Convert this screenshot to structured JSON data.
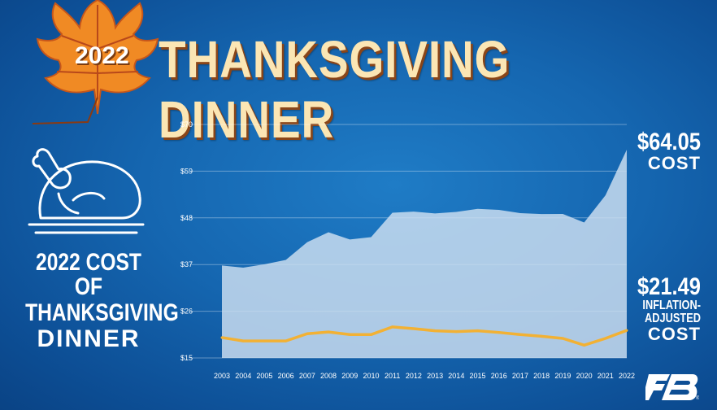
{
  "header": {
    "year": "2022",
    "title": "THANKSGIVING DINNER"
  },
  "left_label": {
    "line1": "2022 COST OF",
    "line2": "THANKSGIVING",
    "line3": "DINNER"
  },
  "callouts": {
    "cost_value": "$64.05",
    "cost_label": "COST",
    "adjusted_value": "$21.49",
    "adjusted_label_1": "INFLATION-",
    "adjusted_label_2": "ADJUSTED",
    "adjusted_label_3": "COST"
  },
  "colors": {
    "cost_fill": "#cfe1f2",
    "adjusted_line": "#f2b134",
    "background": "#1566b0"
  },
  "icons": [
    "maple-leaf-icon",
    "turkey-icon",
    "farm-bureau-logo-icon"
  ],
  "chart_data": {
    "type": "area",
    "title": "",
    "xlabel": "",
    "ylabel": "",
    "x": [
      "2003",
      "2004",
      "2005",
      "2006",
      "2007",
      "2008",
      "2009",
      "2010",
      "2011",
      "2012",
      "2013",
      "2014",
      "2015",
      "2016",
      "2017",
      "2018",
      "2019",
      "2020",
      "2021",
      "2022"
    ],
    "ylim": [
      15,
      70
    ],
    "y_ticks": [
      "$15",
      "$26",
      "$37",
      "$48",
      "$59",
      "$70"
    ],
    "y_tick_values": [
      15,
      26,
      37,
      48,
      59,
      70
    ],
    "grid": true,
    "series": [
      {
        "name": "COST",
        "type": "area",
        "values": [
          36.78,
          36.28,
          37.06,
          38.1,
          42.26,
          44.61,
          42.91,
          43.47,
          49.2,
          49.48,
          49.04,
          49.41,
          50.11,
          49.87,
          49.12,
          48.9,
          48.91,
          46.9,
          53.31,
          64.05
        ]
      },
      {
        "name": "INFLATION-ADJUSTED COST",
        "type": "line",
        "values": [
          19.8,
          19.0,
          19.0,
          19.0,
          20.7,
          21.1,
          20.5,
          20.5,
          22.3,
          21.9,
          21.4,
          21.2,
          21.4,
          21.0,
          20.5,
          20.1,
          19.6,
          18.0,
          19.6,
          21.49
        ]
      }
    ]
  }
}
